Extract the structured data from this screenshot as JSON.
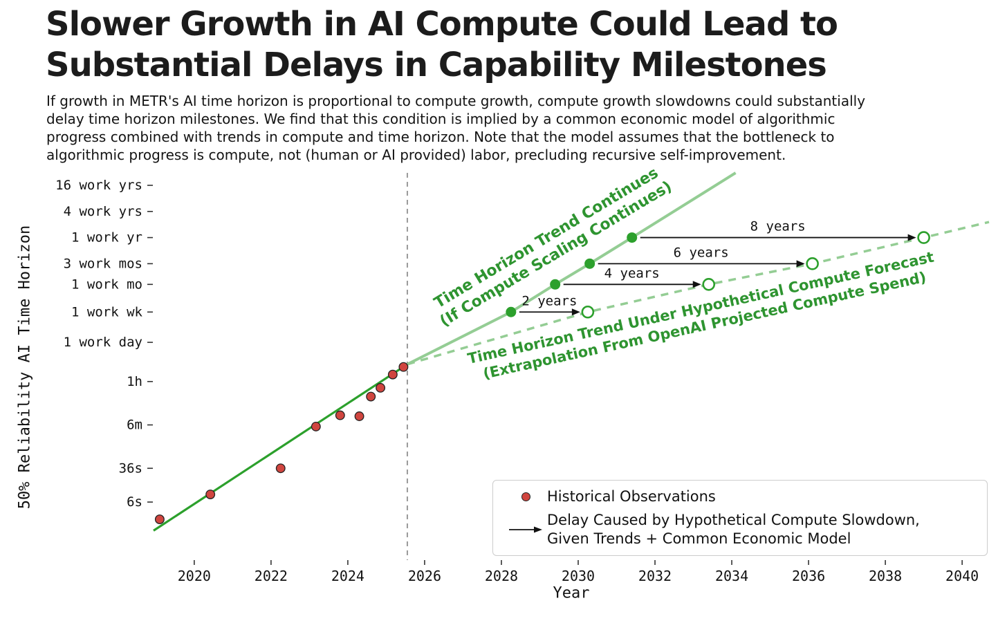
{
  "header": {
    "title_line1": "Slower Growth in AI Compute Could Lead to",
    "title_line2": "Substantial Delays in Capability Milestones",
    "subtitle_lines": [
      "If growth in METR's AI time horizon is proportional to compute growth, compute growth slowdowns could substantially",
      "delay time horizon milestones. We find that this condition is implied by a common economic model of algorithmic",
      "progress combined with trends in compute and time horizon. Note that the model assumes that the bottleneck to",
      "algorithmic progress is compute, not (human or AI provided) labor, precluding recursive self-improvement."
    ]
  },
  "legend": {
    "historical_label": "Historical Observations",
    "delay_label_line1": "Delay Caused by Hypothetical Compute Slowdown,",
    "delay_label_line2": "Given Trends + Common Economic Model"
  },
  "chart_data": {
    "type": "scatter",
    "title": "Slower Growth in AI Compute Could Lead to Substantial Delays in Capability Milestones",
    "xlabel": "Year",
    "ylabel": "50% Reliability AI Time Horizon",
    "x_range": [
      2018.94,
      2040.7
    ],
    "x_ticks": [
      2020,
      2022,
      2024,
      2026,
      2028,
      2030,
      2032,
      2034,
      2036,
      2038,
      2040
    ],
    "y_scale": "log",
    "y_unit": "minutes",
    "y_range_minutes": [
      0.0046,
      3870000
    ],
    "y_ticks": [
      {
        "label": "16 work yrs",
        "minutes": 1996800
      },
      {
        "label": "4 work yrs",
        "minutes": 499200
      },
      {
        "label": "1 work yr",
        "minutes": 124800
      },
      {
        "label": "3 work mos",
        "minutes": 31200
      },
      {
        "label": "1 work mo",
        "minutes": 10400
      },
      {
        "label": "1 work wk",
        "minutes": 2400
      },
      {
        "label": "1 work day",
        "minutes": 480
      },
      {
        "label": "1h",
        "minutes": 60
      },
      {
        "label": "6m",
        "minutes": 6
      },
      {
        "label": "36s",
        "minutes": 0.6
      },
      {
        "label": "6s",
        "minutes": 0.1
      }
    ],
    "present_year_divider": 2025.55,
    "historical_points": [
      [
        2019.1,
        0.04
      ],
      [
        2020.42,
        0.15
      ],
      [
        2022.25,
        0.6
      ],
      [
        2023.17,
        5.5
      ],
      [
        2023.8,
        10
      ],
      [
        2024.3,
        9.5
      ],
      [
        2024.6,
        27
      ],
      [
        2024.85,
        43
      ],
      [
        2025.17,
        87
      ],
      [
        2025.45,
        130
      ]
    ],
    "historical_trend": [
      [
        2018.94,
        0.022
      ],
      [
        2025.55,
        150
      ]
    ],
    "continued_trend": [
      [
        2025.55,
        150
      ],
      [
        2028.25,
        2400
      ],
      [
        2029.4,
        10400
      ],
      [
        2030.3,
        31200
      ],
      [
        2031.4,
        124800
      ],
      [
        2034.1,
        3870000
      ]
    ],
    "slowdown_trend": [
      [
        2025.55,
        150
      ],
      [
        2030.25,
        2400
      ],
      [
        2033.4,
        10400
      ],
      [
        2036.1,
        31200
      ],
      [
        2039.0,
        124800
      ],
      [
        2040.7,
        285000
      ]
    ],
    "delays": [
      {
        "label": "2 years",
        "milestone": "1 work wk",
        "minutes": 2400,
        "from_year": 2028.25,
        "to_year": 2030.25
      },
      {
        "label": "4 years",
        "milestone": "1 work mo",
        "minutes": 10400,
        "from_year": 2029.4,
        "to_year": 2033.4
      },
      {
        "label": "6 years",
        "milestone": "3 work mos",
        "minutes": 31200,
        "from_year": 2030.3,
        "to_year": 2036.1
      },
      {
        "label": "8 years",
        "milestone": "1 work yr",
        "minutes": 124800,
        "from_year": 2031.4,
        "to_year": 2039.0
      }
    ],
    "annotations": [
      {
        "line1": "Time Horizon Trend Continues",
        "line2": "(If Compute Scaling Continues)"
      },
      {
        "line1": "Time Horizon Trend Under Hypothetical Compute Forecast",
        "line2": "(Extrapolation From OpenAI Projected Compute Spend)"
      }
    ],
    "colors": {
      "trend_green": "#2ca02c",
      "light_green": "#94cd94",
      "milestone_green": "#2ca02c",
      "annotation_green": "#2e9430",
      "hist_fill": "#d0453f",
      "hist_edge": "#222222",
      "divider_gray": "#999999",
      "arrow_black": "#111111"
    }
  }
}
